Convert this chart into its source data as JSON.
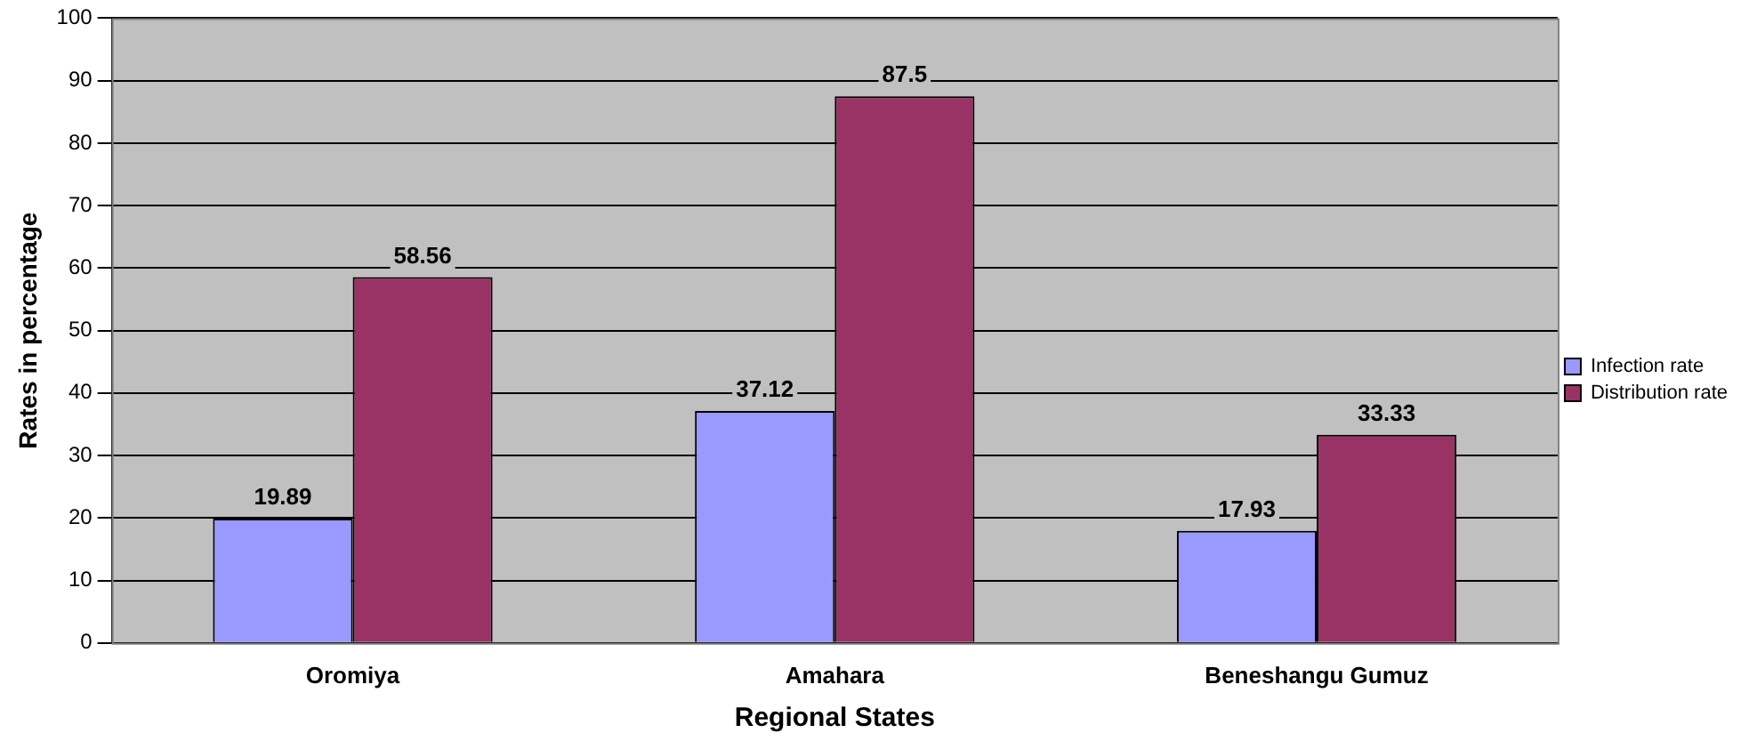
{
  "chart_data": {
    "type": "bar",
    "xlabel": "Regional States",
    "ylabel": "Rates in percentage",
    "categories": [
      "Oromiya",
      "Amahara",
      "Beneshangu Gumuz"
    ],
    "series": [
      {
        "name": "Infection rate",
        "color": "#9999ff",
        "values": [
          19.89,
          37.12,
          17.93
        ]
      },
      {
        "name": "Distribution rate",
        "color": "#993366",
        "values": [
          58.56,
          87.5,
          33.33
        ]
      }
    ],
    "ylim": [
      0,
      100
    ],
    "yticks": [
      0,
      10,
      20,
      30,
      40,
      50,
      60,
      70,
      80,
      90,
      100
    ],
    "grid": "y",
    "legend": "right",
    "data_labels": true
  }
}
